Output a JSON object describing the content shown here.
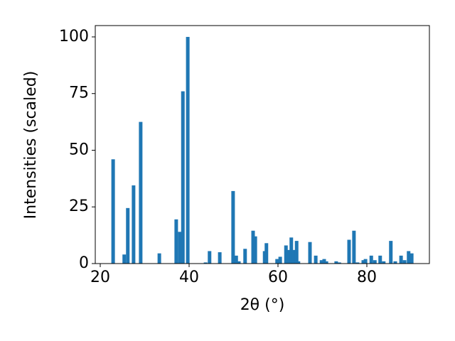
{
  "chart_data": {
    "type": "bar",
    "x_label": "2θ (°)",
    "y_label": "Intensities (scaled)",
    "x": [
      22.9,
      25.4,
      26.2,
      27.5,
      29.1,
      33.3,
      37.1,
      37.9,
      38.6,
      39.7,
      43.7,
      44.6,
      46.9,
      49.9,
      50.6,
      51.2,
      52.6,
      54.4,
      54.9,
      57.0,
      57.4,
      59.8,
      60.5,
      61.8,
      62.4,
      63.0,
      63.5,
      64.2,
      64.6,
      67.2,
      68.5,
      69.8,
      70.4,
      70.9,
      73.1,
      73.8,
      76.0,
      77.1,
      77.9,
      79.2,
      79.7,
      81.0,
      81.8,
      83.0,
      83.8,
      85.4,
      86.4,
      87.7,
      88.5,
      89.4,
      90.1
    ],
    "values": [
      46,
      4,
      24.5,
      34.5,
      62.5,
      4.5,
      19.5,
      14,
      76,
      100,
      0.5,
      5.5,
      5,
      32,
      3.5,
      1,
      6.5,
      14.5,
      12,
      5.5,
      9,
      2,
      3,
      8,
      6,
      11.5,
      6,
      10,
      1,
      9.5,
      3.5,
      1.5,
      2,
      1,
      1,
      0.5,
      10.5,
      14.5,
      0.5,
      1.5,
      2,
      3.5,
      1.5,
      3.5,
      1,
      10,
      1,
      3.5,
      1.5,
      5.5,
      4.5
    ],
    "color": "#1f77b4",
    "xlim": [
      18.88,
      94.08
    ],
    "ylim": [
      0,
      105
    ],
    "xticks": [
      20,
      40,
      60,
      80
    ],
    "yticks": [
      0,
      25,
      50,
      75,
      100
    ]
  }
}
